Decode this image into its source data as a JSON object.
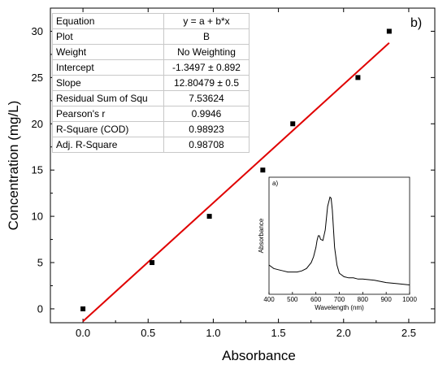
{
  "chart_data": [
    {
      "type": "scatter",
      "panel_label": "b)",
      "xlabel": "Absorbance",
      "ylabel": "Concentration (mg/L)",
      "xlim": [
        -0.25,
        2.7
      ],
      "ylim": [
        -1.5,
        32.5
      ],
      "xticks": [
        "0.0",
        "0.5",
        "1.0",
        "1.5",
        "2.0",
        "2.5"
      ],
      "yticks": [
        "0",
        "5",
        "10",
        "15",
        "20",
        "25",
        "30"
      ],
      "series": [
        {
          "marker": "square",
          "color": "#000000",
          "x": [
            0.0,
            0.53,
            0.97,
            1.38,
            1.61,
            2.11,
            2.35
          ],
          "y": [
            0,
            5,
            10,
            15,
            20,
            25,
            30
          ]
        }
      ],
      "fit_line": {
        "color": "#e00000",
        "intercept": -1.3497,
        "slope": 12.80479,
        "x_range": [
          0.0,
          2.35
        ]
      },
      "fit_table": [
        {
          "key": "Equation",
          "value": "y = a + b*x"
        },
        {
          "key": "Plot",
          "value": "B"
        },
        {
          "key": "Weight",
          "value": "No Weighting"
        },
        {
          "key": "Intercept",
          "value": "-1.3497 ± 0.892"
        },
        {
          "key": "Slope",
          "value": "12.80479 ± 0.5"
        },
        {
          "key": "Residual Sum of Squ",
          "value": "7.53624"
        },
        {
          "key": "Pearson's r",
          "value": "0.9946"
        },
        {
          "key": "R-Square (COD)",
          "value": "0.98923"
        },
        {
          "key": "Adj. R-Square",
          "value": "0.98708"
        }
      ]
    },
    {
      "type": "line",
      "panel_label": "a)",
      "xlabel": "Wavelength (nm)",
      "ylabel": "Absorbance",
      "xlim": [
        400,
        1000
      ],
      "xticks": [
        "400",
        "500",
        "600",
        "700",
        "800",
        "900",
        "1000"
      ],
      "ylim": [
        0,
        1
      ],
      "series": [
        {
          "color": "#000000",
          "x": [
            400,
            420,
            440,
            460,
            480,
            500,
            520,
            540,
            560,
            580,
            590,
            600,
            605,
            610,
            615,
            620,
            630,
            640,
            650,
            660,
            665,
            670,
            680,
            690,
            700,
            720,
            740,
            760,
            780,
            800,
            850,
            900,
            950,
            1000
          ],
          "y": [
            0.25,
            0.22,
            0.21,
            0.2,
            0.19,
            0.19,
            0.19,
            0.2,
            0.22,
            0.27,
            0.32,
            0.4,
            0.46,
            0.5,
            0.5,
            0.47,
            0.46,
            0.55,
            0.75,
            0.83,
            0.82,
            0.72,
            0.4,
            0.25,
            0.18,
            0.15,
            0.14,
            0.14,
            0.13,
            0.13,
            0.12,
            0.1,
            0.09,
            0.08
          ]
        }
      ]
    }
  ]
}
